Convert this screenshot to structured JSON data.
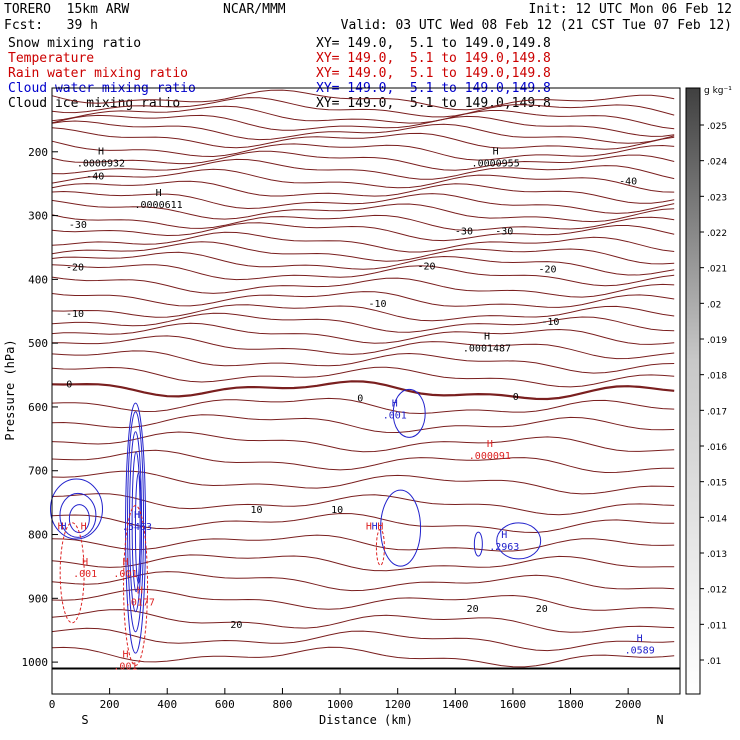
{
  "header": {
    "model": "TORERO  15km ARW",
    "org": "NCAR/MMM",
    "init": "Init: 12 UTC Mon 06 Feb 12",
    "fcst": "Fcst:   39 h",
    "valid": "Valid: 03 UTC Wed 08 Feb 12 (21 CST Tue 07 Feb 12)"
  },
  "fields": [
    {
      "label": "Snow mixing ratio",
      "color": "#000000",
      "xy": "XY= 149.0,  5.1 to 149.0,149.8"
    },
    {
      "label": "Temperature",
      "color": "#cc0000",
      "xy": "XY= 149.0,  5.1 to 149.0,149.8"
    },
    {
      "label": "Rain water mixing ratio",
      "color": "#cc0000",
      "xy": "XY= 149.0,  5.1 to 149.0,149.8"
    },
    {
      "label": "Cloud water mixing ratio",
      "color": "#0000cc",
      "xy": "XY= 149.0,  5.1 to 149.0,149.8"
    },
    {
      "label": "Cloud ice mixing ratio",
      "color": "#000000",
      "xy": "XY= 149.0,  5.1 to 149.0,149.8"
    }
  ],
  "colors": {
    "temperature": "#7a1f1f",
    "rain": "#dd2222",
    "cloud_water": "#2222cc",
    "text": "#000000",
    "frame": "#000000"
  },
  "chart_data": {
    "type": "contour-cross-section",
    "xlabel": "Distance (km)",
    "ylabel": "Pressure (hPa)",
    "xlim": [
      0,
      2180
    ],
    "ylim": [
      1050,
      100
    ],
    "xticks": [
      0,
      200,
      400,
      600,
      800,
      1000,
      1200,
      1400,
      1600,
      1800,
      2000
    ],
    "yticks": [
      200,
      300,
      400,
      500,
      600,
      700,
      800,
      900,
      1000
    ],
    "xtick_labels": [
      "0",
      "200",
      "400",
      "600",
      "800",
      "1000",
      "1200",
      "1400",
      "1600",
      "1800",
      "2000"
    ],
    "ytick_labels": [
      "200",
      "300",
      "400",
      "500",
      "600",
      "700",
      "800",
      "900",
      "1000"
    ],
    "end_labels": [
      "S",
      "N"
    ],
    "colorbar": {
      "units": "g kg⁻¹",
      "ticks": [
        ".01",
        ".011",
        ".012",
        ".013",
        ".014",
        ".015",
        ".016",
        ".017",
        ".018",
        ".019",
        ".02",
        ".021",
        ".022",
        ".023",
        ".024",
        ".025"
      ]
    },
    "temperature_labels": [
      {
        "text": "-40",
        "x": 150,
        "p": 237
      },
      {
        "text": "-40",
        "x": 2000,
        "p": 245
      },
      {
        "text": "-30",
        "x": 90,
        "p": 313
      },
      {
        "text": "-30",
        "x": 1430,
        "p": 323
      },
      {
        "text": "-30",
        "x": 1570,
        "p": 323
      },
      {
        "text": "-20",
        "x": 80,
        "p": 380
      },
      {
        "text": "-20",
        "x": 1300,
        "p": 378
      },
      {
        "text": "-20",
        "x": 1720,
        "p": 383
      },
      {
        "text": "-10",
        "x": 80,
        "p": 453
      },
      {
        "text": "-10",
        "x": 1130,
        "p": 437
      },
      {
        "text": "-10",
        "x": 1730,
        "p": 465
      },
      {
        "text": "0",
        "x": 60,
        "p": 563
      },
      {
        "text": "0",
        "x": 1070,
        "p": 585
      },
      {
        "text": "0",
        "x": 1610,
        "p": 583
      },
      {
        "text": "10",
        "x": 710,
        "p": 760
      },
      {
        "text": "10",
        "x": 990,
        "p": 760
      },
      {
        "text": "20",
        "x": 640,
        "p": 940
      },
      {
        "text": "20",
        "x": 1460,
        "p": 915
      },
      {
        "text": "20",
        "x": 1700,
        "p": 915
      }
    ],
    "maxima": [
      {
        "text": ".0000932",
        "x": 170,
        "p": 217,
        "color": "#000000"
      },
      {
        "text": ".0000955",
        "x": 1540,
        "p": 217,
        "color": "#000000"
      },
      {
        "text": ".0000611",
        "x": 370,
        "p": 282,
        "color": "#000000"
      },
      {
        "text": ".0001487",
        "x": 1510,
        "p": 507,
        "color": "#000000"
      },
      {
        "text": ".001",
        "x": 1190,
        "p": 612,
        "color": "#2222cc"
      },
      {
        "text": ".000091",
        "x": 1520,
        "p": 675,
        "color": "#dd2222"
      },
      {
        "text": ".5463",
        "x": 295,
        "p": 787,
        "color": "#2222cc"
      },
      {
        "text": ".2963",
        "x": 1570,
        "p": 818,
        "color": "#2222cc"
      },
      {
        "text": ".0589",
        "x": 2040,
        "p": 980,
        "color": "#2222cc"
      },
      {
        "text": ".001",
        "x": 115,
        "p": 860,
        "color": "#dd2222"
      },
      {
        "text": ".001",
        "x": 255,
        "p": 860,
        "color": "#dd2222"
      },
      {
        "text": ".0177",
        "x": 305,
        "p": 905,
        "color": "#dd2222"
      },
      {
        "text": ".001",
        "x": 255,
        "p": 1005,
        "color": "#dd2222"
      }
    ],
    "overlap_labels": [
      {
        "text": "H",
        "x": 30,
        "p": 805,
        "color": "#dd2222"
      },
      {
        "text": "H",
        "x": 40,
        "p": 805,
        "color": "#2222cc"
      },
      {
        "text": "H",
        "x": 110,
        "p": 805,
        "color": "#dd2222"
      },
      {
        "text": "H",
        "x": 1100,
        "p": 805,
        "color": "#dd2222"
      },
      {
        "text": "H",
        "x": 1120,
        "p": 805,
        "color": "#2222cc"
      },
      {
        "text": "H",
        "x": 1140,
        "p": 805,
        "color": "#dd2222"
      }
    ]
  }
}
